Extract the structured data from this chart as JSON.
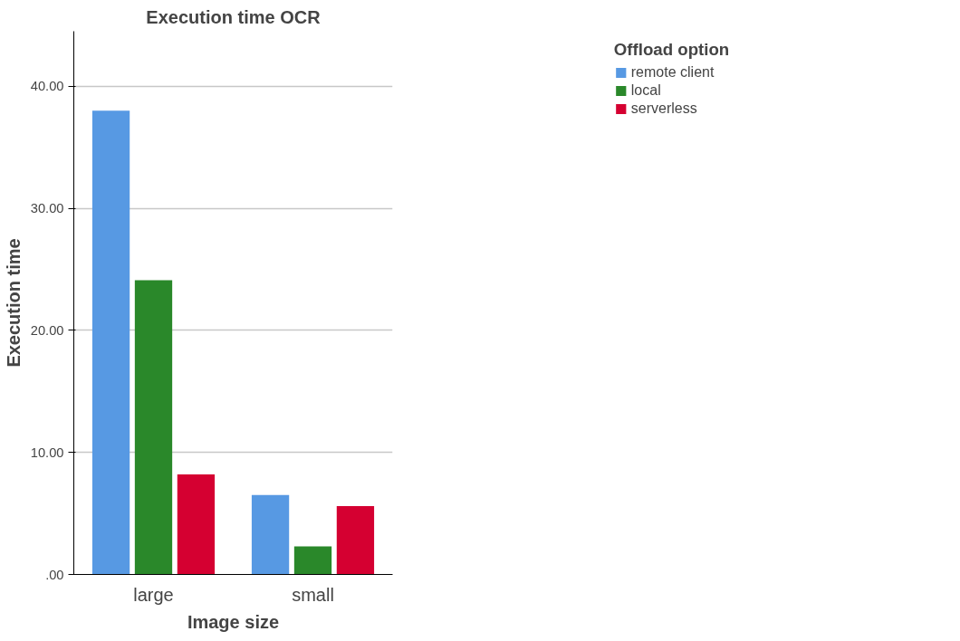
{
  "chart_data": {
    "type": "bar",
    "title": "Execution time OCR",
    "xlabel": "Image size",
    "ylabel": "Execution time",
    "legend_title": "Offload option",
    "categories": [
      "large",
      "small"
    ],
    "series": [
      {
        "name": "remote client",
        "color": "#5799e3",
        "values": [
          38.0,
          6.5
        ]
      },
      {
        "name": "local",
        "color": "#2a882a",
        "values": [
          24.1,
          2.3
        ]
      },
      {
        "name": "serverless",
        "color": "#d50031",
        "values": [
          8.2,
          5.6
        ]
      }
    ],
    "ylim": [
      0,
      44.5
    ],
    "yticks": [
      {
        "value": 0,
        "label": ".00"
      },
      {
        "value": 10,
        "label": "10.00"
      },
      {
        "value": 20,
        "label": "20.00"
      },
      {
        "value": 30,
        "label": "30.00"
      },
      {
        "value": 40,
        "label": "40.00"
      }
    ],
    "grid": "y",
    "legend": "top right"
  }
}
